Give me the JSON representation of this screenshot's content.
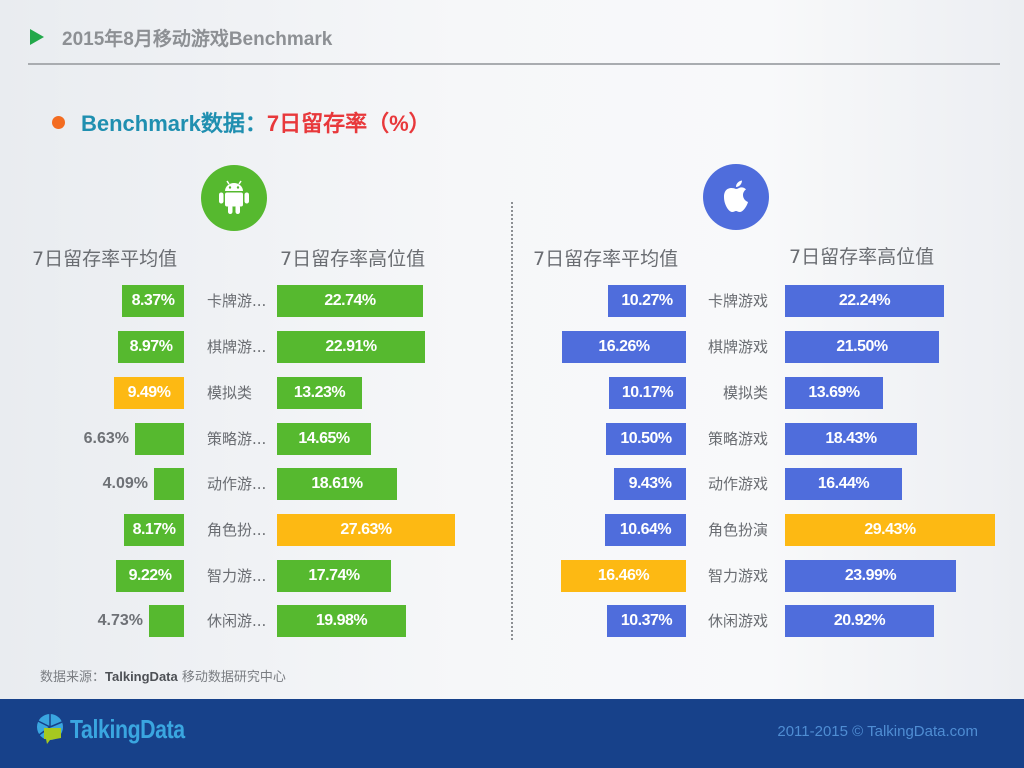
{
  "header": {
    "title": "2015年8月移动游戏Benchmark"
  },
  "subtitle": {
    "part_a": "Benchmark数据：",
    "part_b": "7日留存率（%）"
  },
  "android": {
    "icon": "android-icon",
    "avg_header": "7日留存率平均值",
    "high_header": "7日留存率高位值"
  },
  "ios": {
    "icon": "apple-icon",
    "avg_header": "7日留存率平均值",
    "high_header": "7日留存率高位值"
  },
  "colors": {
    "android": "#56b92f",
    "ios": "#4f6ddc",
    "highlight": "#fdb913"
  },
  "chart_data": [
    {
      "type": "bar",
      "title": "Android 7日留存率（%）",
      "categories": [
        "卡牌游...",
        "棋牌游...",
        "模拟类",
        "策略游...",
        "动作游...",
        "角色扮...",
        "智力游...",
        "休闲游..."
      ],
      "series": [
        {
          "name": "7日留存率平均值",
          "values": [
            8.37,
            8.97,
            9.49,
            6.63,
            4.09,
            8.17,
            9.22,
            4.73
          ],
          "labels": [
            "8.37%",
            "8.97%",
            "9.49%",
            "6.63%",
            "4.09%",
            "8.17%",
            "9.22%",
            "4.73%"
          ],
          "highlight_index": 2
        },
        {
          "name": "7日留存率高位值",
          "values": [
            22.74,
            22.91,
            13.23,
            14.65,
            18.61,
            27.63,
            17.74,
            19.98
          ],
          "labels": [
            "22.74%",
            "22.91%",
            "13.23%",
            "14.65%",
            "18.61%",
            "27.63%",
            "17.74%",
            "19.98%"
          ],
          "highlight_index": 5
        }
      ],
      "orientation": "horizontal",
      "grid": false
    },
    {
      "type": "bar",
      "title": "iOS 7日留存率（%）",
      "categories": [
        "卡牌游戏",
        "棋牌游戏",
        "模拟类",
        "策略游戏",
        "动作游戏",
        "角色扮演",
        "智力游戏",
        "休闲游戏"
      ],
      "series": [
        {
          "name": "7日留存率平均值",
          "values": [
            10.27,
            16.26,
            10.17,
            10.5,
            9.43,
            10.64,
            16.46,
            10.37
          ],
          "labels": [
            "10.27%",
            "16.26%",
            "10.17%",
            "10.50%",
            "9.43%",
            "10.64%",
            "16.46%",
            "10.37%"
          ],
          "highlight_index": 6
        },
        {
          "name": "7日留存率高位值",
          "values": [
            22.24,
            21.5,
            13.69,
            18.43,
            16.44,
            29.43,
            23.99,
            20.92
          ],
          "labels": [
            "22.24%",
            "21.50%",
            "13.69%",
            "18.43%",
            "16.44%",
            "29.43%",
            "23.99%",
            "20.92%"
          ],
          "highlight_index": 5
        }
      ],
      "orientation": "horizontal",
      "grid": false
    }
  ],
  "source": {
    "label": "数据来源：",
    "brand": "TalkingData",
    "rest": " 移动数据研究中心"
  },
  "footer": {
    "logo_text": "TalkingData",
    "copyright": "2011-2015 © TalkingData.com"
  }
}
